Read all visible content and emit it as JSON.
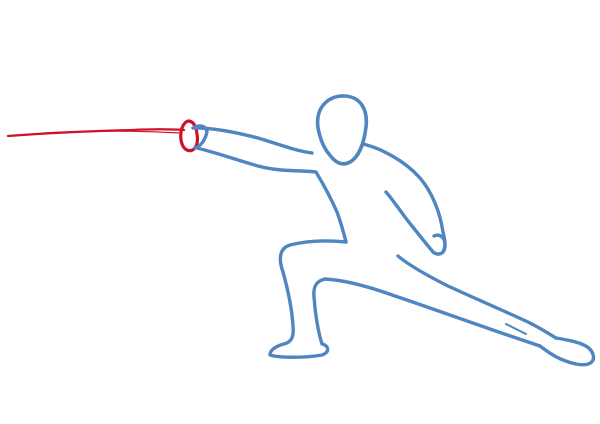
{
  "illustration": {
    "subject": "fencer-lunge",
    "colors": {
      "background": "#ffffff",
      "figure": "#4f86c0",
      "sword": "#d0112b"
    },
    "icons": [
      "fencer-icon",
      "epee-icon"
    ]
  }
}
